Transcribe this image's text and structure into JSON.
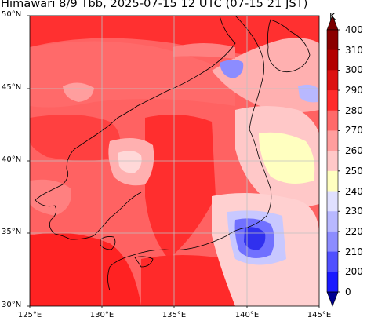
{
  "title": "Himawari 8/9 Tbb, 2025-07-15 12 UTC (07-15 21 JST)",
  "map": {
    "lat_labels": [
      "50°N",
      "45°N",
      "40°N",
      "35°N",
      "30°N"
    ],
    "lon_labels": [
      "125°E",
      "130°E",
      "135°E",
      "140°E",
      "145°E"
    ],
    "lon_range": [
      125,
      145
    ],
    "lat_range": [
      30,
      50
    ]
  },
  "colorbar": {
    "unit": "K",
    "ticks": [
      "400",
      "310",
      "300",
      "290",
      "280",
      "270",
      "260",
      "250",
      "240",
      "230",
      "220",
      "210",
      "200",
      "0"
    ],
    "colors": {
      "top_arrow": "#7a0000",
      "c400": "#8b0000",
      "c310": "#b30000",
      "c300": "#dd1111",
      "c290": "#ff2b2b",
      "c280": "#ff6a6a",
      "c270": "#ff9e9e",
      "c260": "#ffc8c8",
      "c250": "#ffffc0",
      "c240": "#e0e0ff",
      "c230": "#b8b8ff",
      "c220": "#8c8cff",
      "c210": "#5050ff",
      "c200": "#1a1aff",
      "c0": "#0000b0",
      "bottom_arrow": "#000090"
    }
  }
}
